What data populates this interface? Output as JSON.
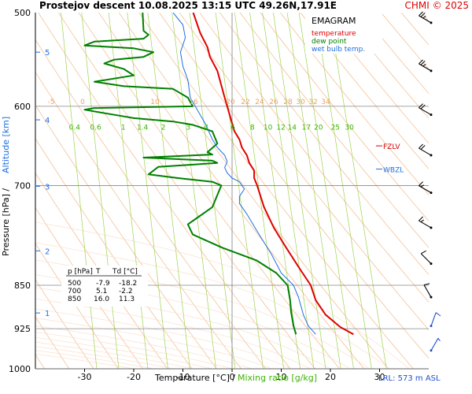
{
  "header": {
    "title": "Prostejov   descent   10.08.2025 13:15 UTC  49.26N,17.91E",
    "copyright": "CHMI © 2025"
  },
  "legend": {
    "title": "EMAGRAM",
    "items": [
      {
        "label": "temperature",
        "color": "#e00000"
      },
      {
        "label": "dew point",
        "color": "#008000"
      },
      {
        "label": "wet bulb temp.",
        "color": "#1f6fe0"
      }
    ]
  },
  "axes": {
    "y_left_label": "Pressure [hPa]  /",
    "y_left_label2": "Altitude [km]",
    "x_label": "Temperature [°C]  /",
    "x_label2": "Mixing ratio [g/kg]"
  },
  "levels": {
    "fzlv": "FZLV",
    "wbzl": "WBZL"
  },
  "lrl": "LRL: 573 m ASL",
  "table": {
    "headers": [
      "p [hPa]",
      "T",
      "Td [°C]"
    ],
    "rows": [
      [
        "500",
        "-7.9",
        "-18.2"
      ],
      [
        "700",
        "5.1",
        "-2.2"
      ],
      [
        "850",
        "16.0",
        "11.3"
      ]
    ]
  },
  "chart_data": {
    "type": "line",
    "title": "EMAGRAM",
    "xlabel": "Temperature [°C] / Mixing ratio [g/kg]",
    "ylabel": "Pressure [hPa] / Altitude [km]",
    "xlim": [
      -40,
      40
    ],
    "ylim": [
      1000,
      500
    ],
    "y_scale": "log",
    "x_ticks": [
      -30,
      -20,
      -10,
      0,
      10,
      20,
      30
    ],
    "pressure_ticks": [
      500,
      600,
      700,
      850,
      925,
      1000
    ],
    "altitude_ticks": [
      {
        "km": "1",
        "p": 897
      },
      {
        "km": "2",
        "p": 795
      },
      {
        "km": "3",
        "p": 701
      },
      {
        "km": "4",
        "p": 616
      },
      {
        "km": "5",
        "p": 540
      }
    ],
    "dry_adiabat_labels": [
      "-5",
      "0",
      "10",
      "16",
      "20",
      "22",
      "24",
      "26",
      "28",
      "30",
      "32",
      "34"
    ],
    "mixing_ratio_labels": [
      "0.4",
      "0.6",
      "1",
      "1.4",
      "2",
      "3",
      "4",
      "6",
      "8",
      "10",
      "12",
      "14",
      "17",
      "20",
      "25",
      "30"
    ],
    "levels": [
      {
        "name": "FZLV",
        "p": 648
      },
      {
        "name": "WBZL",
        "p": 678
      }
    ],
    "series": [
      {
        "name": "temperature",
        "color": "#e00000",
        "points": [
          [
            24.7,
            935
          ],
          [
            22,
            922
          ],
          [
            19,
            900
          ],
          [
            17,
            875
          ],
          [
            16.0,
            850
          ],
          [
            13.5,
            820
          ],
          [
            11,
            790
          ],
          [
            8.5,
            760
          ],
          [
            6.5,
            730
          ],
          [
            5.1,
            700
          ],
          [
            4.5,
            690
          ],
          [
            4.5,
            680
          ],
          [
            3.5,
            670
          ],
          [
            3,
            660
          ],
          [
            2,
            650
          ],
          [
            1.5,
            640
          ],
          [
            0.5,
            630
          ],
          [
            0,
            620
          ],
          [
            -0.5,
            610
          ],
          [
            -1,
            600
          ],
          [
            -1.5,
            590
          ],
          [
            -3,
            560
          ],
          [
            -4.5,
            545
          ],
          [
            -5,
            535
          ],
          [
            -6.5,
            520
          ],
          [
            -7.9,
            500
          ]
        ]
      },
      {
        "name": "dew point",
        "color": "#008000",
        "points": [
          [
            13,
            935
          ],
          [
            12.5,
            920
          ],
          [
            12,
            895
          ],
          [
            11.8,
            875
          ],
          [
            11.3,
            850
          ],
          [
            9,
            830
          ],
          [
            5,
            810
          ],
          [
            -2,
            790
          ],
          [
            -8,
            770
          ],
          [
            -9,
            755
          ],
          [
            -7,
            745
          ],
          [
            -4,
            730
          ],
          [
            -2.2,
            700
          ],
          [
            -4,
            695
          ],
          [
            -11,
            690
          ],
          [
            -17,
            685
          ],
          [
            -15,
            675
          ],
          [
            -3,
            670
          ],
          [
            -4,
            667
          ],
          [
            -18,
            663
          ],
          [
            -4,
            659
          ],
          [
            -5,
            656
          ],
          [
            -3,
            645
          ],
          [
            -4,
            630
          ],
          [
            -8,
            622
          ],
          [
            -12,
            618
          ],
          [
            -20,
            614
          ],
          [
            -23,
            611
          ],
          [
            -27,
            607
          ],
          [
            -30,
            604
          ],
          [
            -28,
            602
          ],
          [
            -8,
            600
          ],
          [
            -9,
            590
          ],
          [
            -12,
            580
          ],
          [
            -22,
            577
          ],
          [
            -28,
            572
          ],
          [
            -20,
            565
          ],
          [
            -22,
            558
          ],
          [
            -26,
            552
          ],
          [
            -24,
            548
          ],
          [
            -18,
            545
          ],
          [
            -16,
            540
          ],
          [
            -20,
            536
          ],
          [
            -30,
            533
          ],
          [
            -28,
            529
          ],
          [
            -18,
            526
          ],
          [
            -17,
            522
          ],
          [
            -18,
            518
          ],
          [
            -18.2,
            500
          ]
        ]
      },
      {
        "name": "wet bulb temp.",
        "color": "#1f6fe0",
        "points": [
          [
            17,
            935
          ],
          [
            15.5,
            920
          ],
          [
            14.5,
            900
          ],
          [
            13.5,
            870
          ],
          [
            12.5,
            850
          ],
          [
            10,
            830
          ],
          [
            8,
            800
          ],
          [
            5.5,
            770
          ],
          [
            3,
            740
          ],
          [
            1.5,
            725
          ],
          [
            1.5,
            715
          ],
          [
            2.5,
            705
          ],
          [
            1.5,
            695
          ],
          [
            0,
            690
          ],
          [
            -1,
            683
          ],
          [
            -1.5,
            676
          ],
          [
            -1,
            668
          ],
          [
            -1.5,
            660
          ],
          [
            -3,
            650
          ],
          [
            -4,
            640
          ],
          [
            -5.5,
            620
          ],
          [
            -7,
            605
          ],
          [
            -8.5,
            590
          ],
          [
            -9,
            570
          ],
          [
            -10,
            555
          ],
          [
            -10.5,
            540
          ],
          [
            -9.5,
            525
          ],
          [
            -10,
            512
          ],
          [
            -12,
            500
          ]
        ]
      }
    ],
    "wind_barbs": [
      {
        "p": 510,
        "dir": 300,
        "speed_kt": 25
      },
      {
        "p": 560,
        "dir": 300,
        "speed_kt": 25
      },
      {
        "p": 610,
        "dir": 300,
        "speed_kt": 20
      },
      {
        "p": 660,
        "dir": 300,
        "speed_kt": 20
      },
      {
        "p": 710,
        "dir": 300,
        "speed_kt": 15
      },
      {
        "p": 760,
        "dir": 300,
        "speed_kt": 15
      },
      {
        "p": 815,
        "dir": 315,
        "speed_kt": 10
      },
      {
        "p": 870,
        "dir": 330,
        "speed_kt": 10
      },
      {
        "p": 920,
        "dir": 20,
        "speed_kt": 10
      },
      {
        "p": 965,
        "dir": 30,
        "speed_kt": 5
      }
    ]
  }
}
